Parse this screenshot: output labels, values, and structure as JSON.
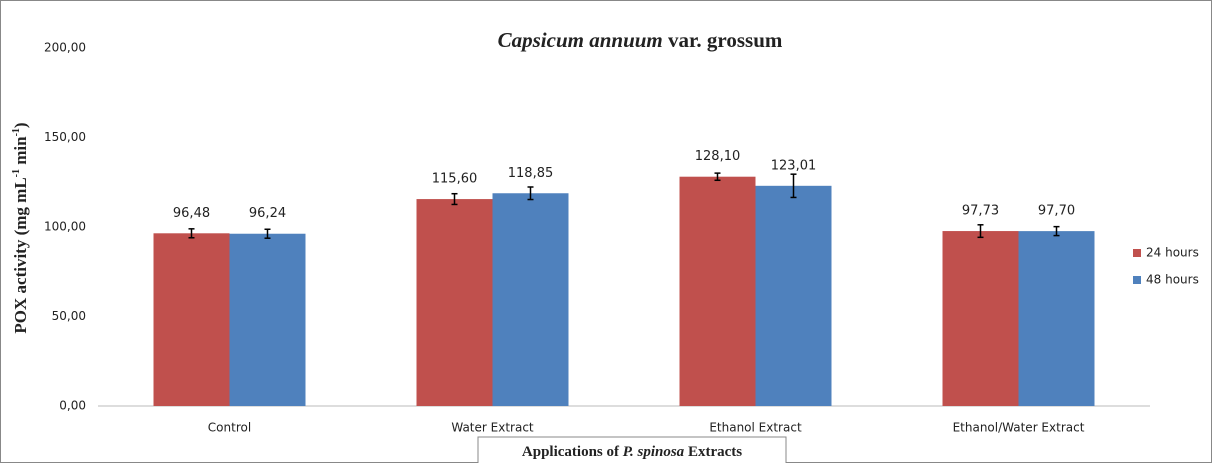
{
  "chart_data": {
    "type": "bar",
    "title": [
      "Capsicum annuum",
      " var. grossum"
    ],
    "x_label": [
      "Applications of ",
      "P. spinosa",
      " Extracts"
    ],
    "y_label": [
      "POX activity (mg mL",
      "-1",
      " min",
      "-1",
      ")"
    ],
    "categories": [
      "Control",
      "Water Extract",
      "Ethanol Extract",
      "Ethanol/Water Extract"
    ],
    "series": [
      {
        "name": "24 hours",
        "color": "#c0504d",
        "values": [
          96.48,
          115.6,
          128.1,
          97.73
        ],
        "value_labels": [
          "96,48",
          "115,60",
          "128,10",
          "97,73"
        ],
        "errors": [
          2.5,
          3,
          2,
          3.5
        ]
      },
      {
        "name": "48 hours",
        "color": "#4f81bd",
        "values": [
          96.24,
          118.85,
          123.01,
          97.7
        ],
        "value_labels": [
          "96,24",
          "118,85",
          "123,01",
          "97,70"
        ],
        "errors": [
          2.5,
          3.5,
          6.5,
          2.5
        ]
      }
    ],
    "ylim": [
      0,
      200
    ],
    "yticks": [
      {
        "value": 0,
        "label": "0,00"
      },
      {
        "value": 50,
        "label": "50,00"
      },
      {
        "value": 100,
        "label": "100,00"
      },
      {
        "value": 150,
        "label": "150,00"
      },
      {
        "value": 200,
        "label": "200,00"
      }
    ],
    "grid": false,
    "legend": "right"
  }
}
